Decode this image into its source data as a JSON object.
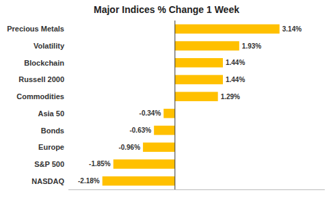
{
  "chart_data": {
    "type": "bar",
    "orientation": "horizontal",
    "title": "Major Indices % Change 1 Week",
    "categories": [
      "NASDAQ",
      "S&P 500",
      "Europe",
      "Bonds",
      "Asia 50",
      "Commodities",
      "Russell 2000",
      "Blockchain",
      "Volatility",
      "Precious Metals"
    ],
    "values": [
      -2.18,
      -1.85,
      -0.96,
      -0.63,
      -0.34,
      1.29,
      1.44,
      1.44,
      1.93,
      3.14
    ],
    "value_labels": [
      "-2.18%",
      "-1.85%",
      "-0.96%",
      "-0.63%",
      "-0.34%",
      "1.29%",
      "1.44%",
      "1.44%",
      "1.93%",
      "3.14%"
    ],
    "data_labels": true,
    "color": "#FFC000",
    "xlim": [
      -3.2,
      4.5
    ],
    "tick_labels": "y",
    "grid": false
  }
}
